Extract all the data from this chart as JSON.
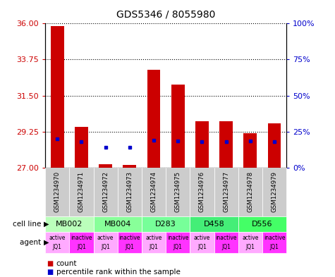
{
  "title": "GDS5346 / 8055980",
  "samples": [
    "GSM1234970",
    "GSM1234971",
    "GSM1234972",
    "GSM1234973",
    "GSM1234974",
    "GSM1234975",
    "GSM1234976",
    "GSM1234977",
    "GSM1234978",
    "GSM1234979"
  ],
  "red_values": [
    35.85,
    29.55,
    27.22,
    27.18,
    33.1,
    32.2,
    29.9,
    29.9,
    29.15,
    29.75
  ],
  "blue_values": [
    28.78,
    28.62,
    28.28,
    28.27,
    28.72,
    28.68,
    28.6,
    28.6,
    28.65,
    28.6
  ],
  "red_base": 27.0,
  "ylim_left": [
    27,
    36
  ],
  "ylim_right": [
    0,
    100
  ],
  "yticks_left": [
    27,
    29.25,
    31.5,
    33.75,
    36
  ],
  "yticks_right": [
    0,
    25,
    50,
    75,
    100
  ],
  "ytick_labels_right": [
    "0%",
    "25%",
    "50%",
    "75%",
    "100%"
  ],
  "cell_lines": [
    [
      "MB002",
      0,
      2
    ],
    [
      "MB004",
      2,
      4
    ],
    [
      "D283",
      4,
      6
    ],
    [
      "D458",
      6,
      8
    ],
    [
      "D556",
      8,
      10
    ]
  ],
  "cl_colors": [
    "#bbffbb",
    "#88ff99",
    "#77ff99",
    "#44ee77",
    "#44ff66"
  ],
  "agent_labels_top": [
    "active",
    "inactive",
    "active",
    "inactive",
    "active",
    "inactive",
    "active",
    "inactive",
    "active",
    "inactive"
  ],
  "agent_labels_bot": [
    "JQ1",
    "JQ1",
    "JQ1",
    "JQ1",
    "JQ1",
    "JQ1",
    "JQ1",
    "JQ1",
    "JQ1",
    "JQ1"
  ],
  "agent_colors_light": "#ffaaff",
  "agent_colors_dark": "#ff33ff",
  "bar_width": 0.55,
  "bar_color": "#cc0000",
  "dot_color": "#0000cc",
  "left_tick_color": "#cc0000",
  "right_tick_color": "#0000cc",
  "gray_box_color": "#cccccc"
}
